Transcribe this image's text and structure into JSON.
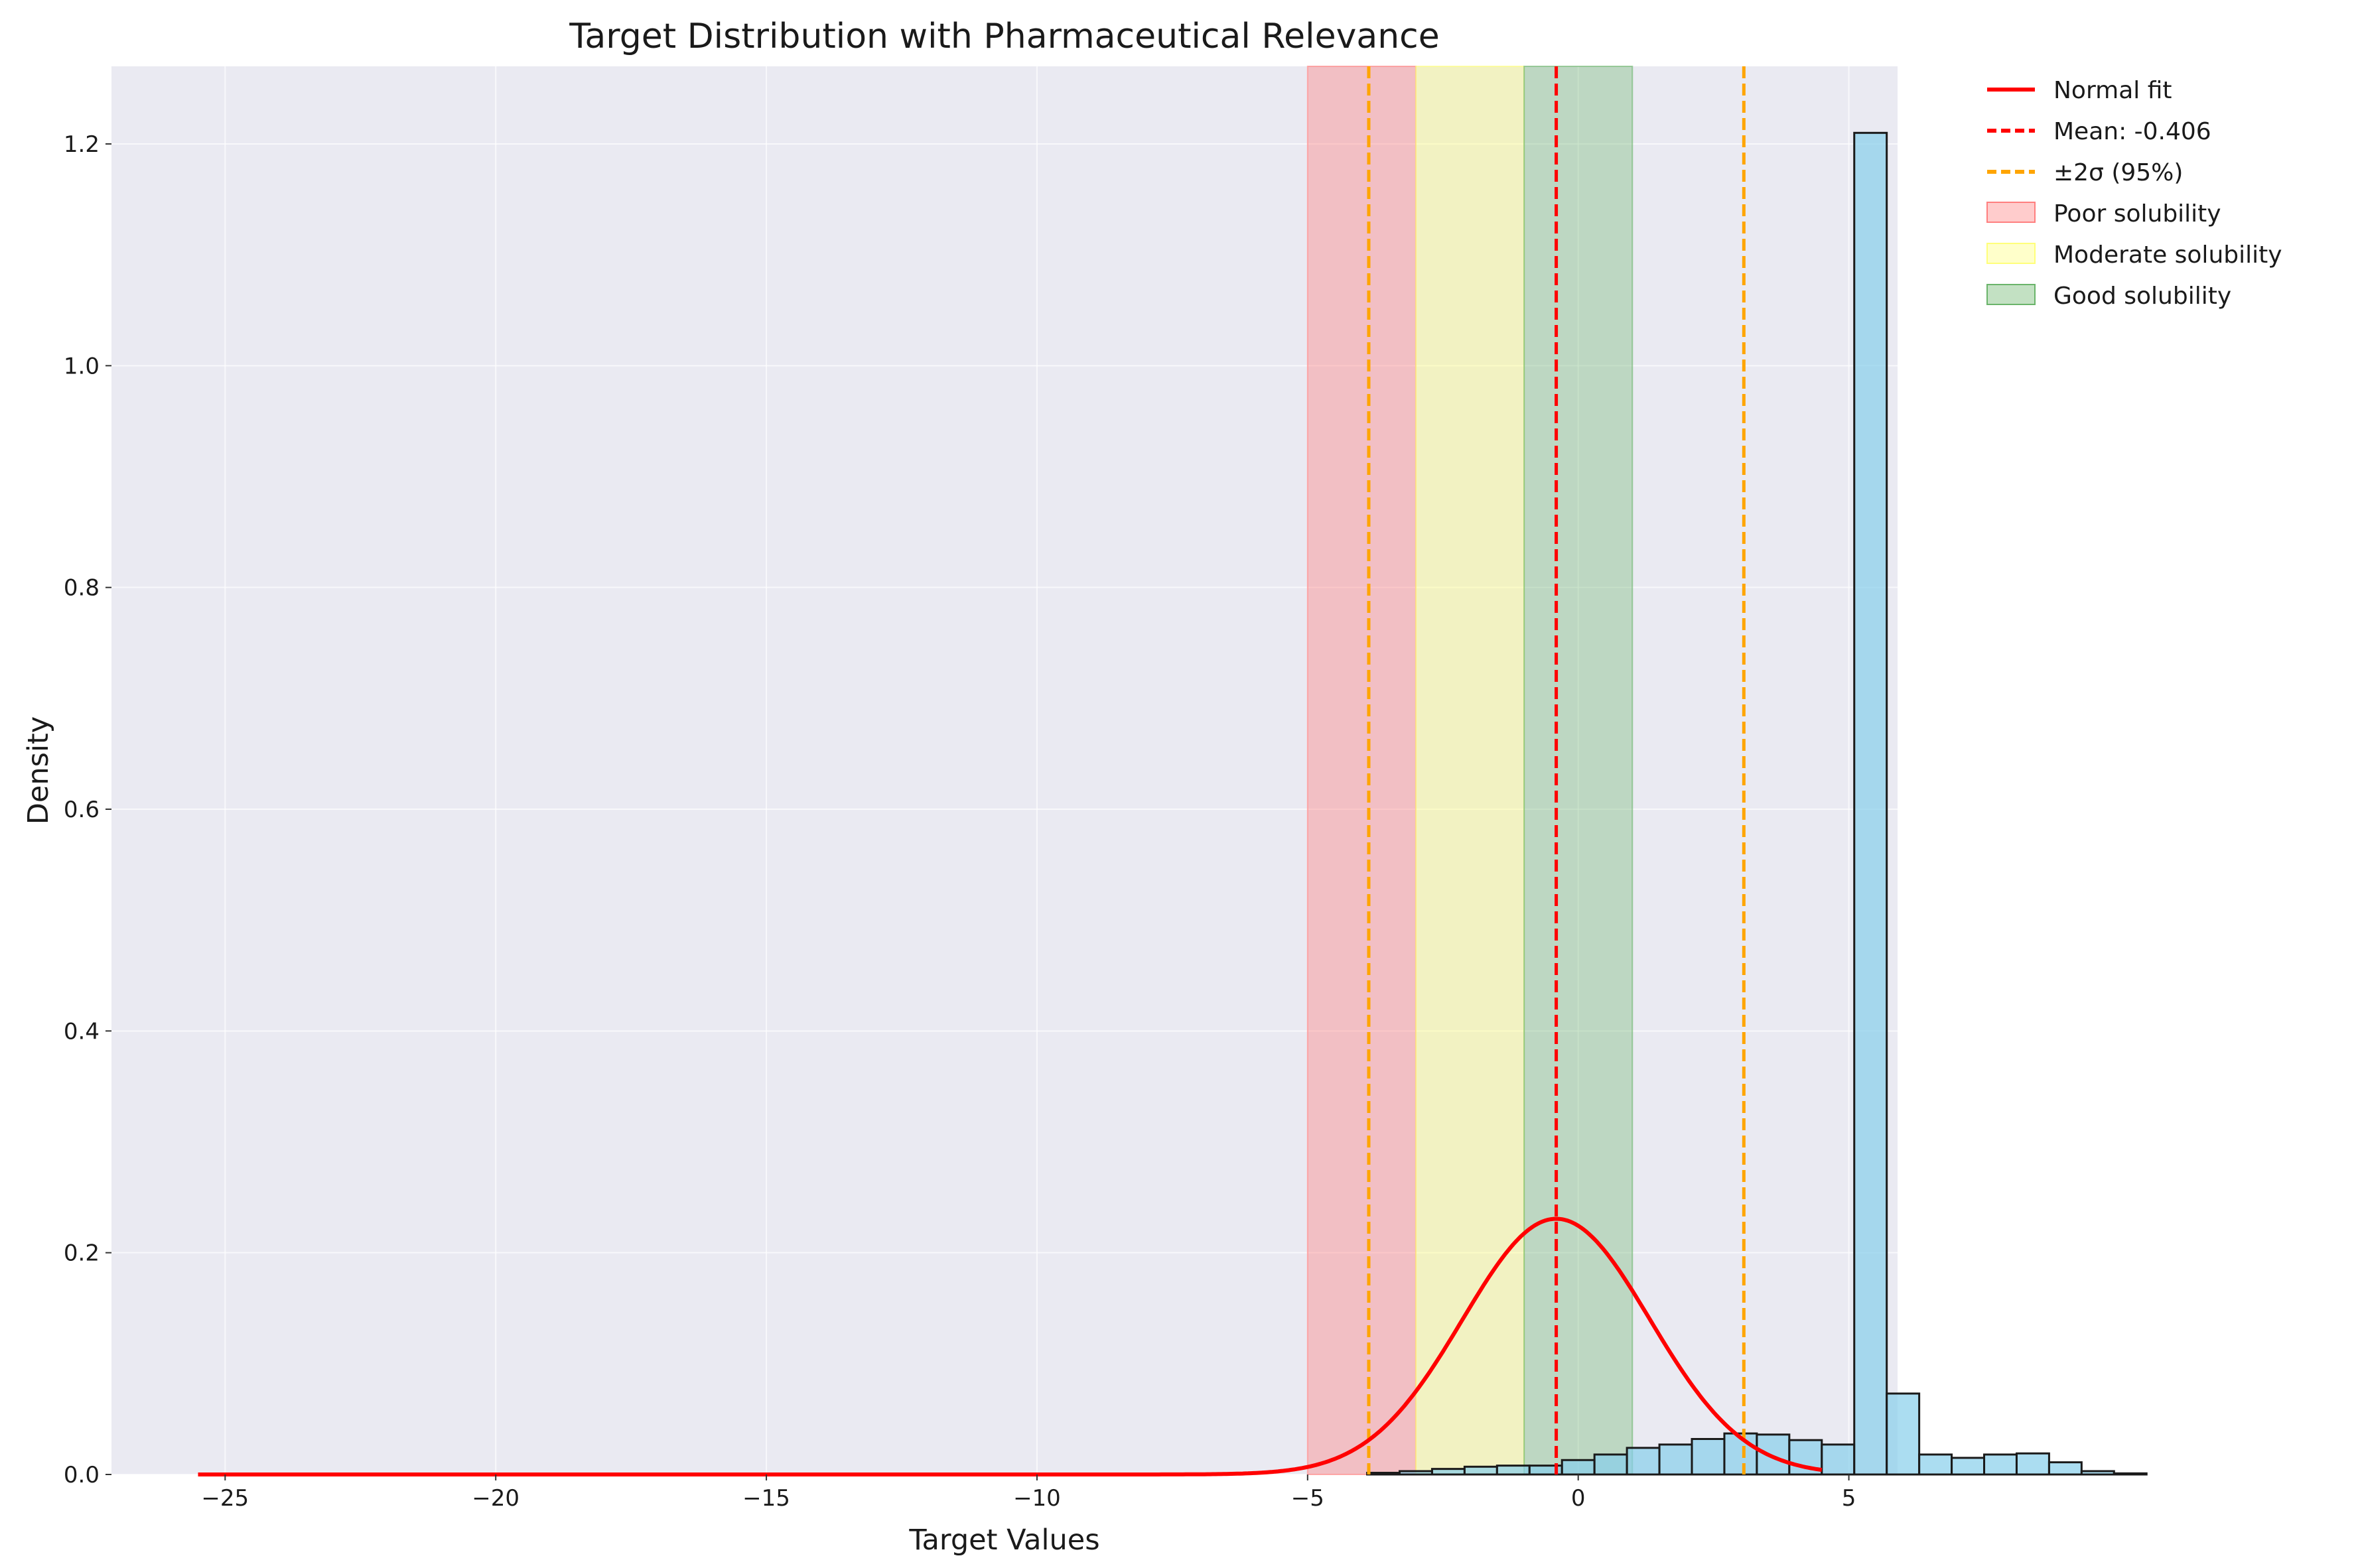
{
  "chart_data": {
    "type": "bar",
    "title": "Target Distribution with Pharmaceutical Relevance",
    "xlabel": "Target Values",
    "ylabel": "Density",
    "xlim": [
      -27.1,
      5.9
    ],
    "ylim": [
      0,
      1.27
    ],
    "grid": true,
    "x_ticks": [
      {
        "value": -25,
        "label": "−25"
      },
      {
        "value": -20,
        "label": "−20"
      },
      {
        "value": -15,
        "label": "−15"
      },
      {
        "value": -10,
        "label": "−10"
      },
      {
        "value": -5,
        "label": "−5"
      },
      {
        "value": 0,
        "label": "0"
      },
      {
        "value": 5,
        "label": "5"
      }
    ],
    "y_ticks": [
      {
        "value": 0.0,
        "label": "0.0"
      },
      {
        "value": 0.2,
        "label": "0.2"
      },
      {
        "value": 0.4,
        "label": "0.4"
      },
      {
        "value": 0.6,
        "label": "0.6"
      },
      {
        "value": 0.8,
        "label": "0.8"
      },
      {
        "value": 1.0,
        "label": "1.0"
      },
      {
        "value": 1.2,
        "label": "1.2"
      }
    ],
    "histogram": {
      "name": "Target histogram",
      "bin_start": -25.5,
      "bin_width": 0.6,
      "densities": [
        0,
        0,
        0,
        0,
        0,
        0,
        0,
        0,
        0,
        0,
        0,
        0,
        0,
        0,
        0,
        0,
        0,
        0,
        0,
        0,
        0,
        0,
        0,
        0,
        0,
        0,
        0,
        0,
        0,
        0,
        0,
        0,
        0,
        0,
        0,
        0,
        0.0015,
        0.003,
        0.005,
        0.007,
        0.008,
        0.008,
        0.013,
        0.018,
        0.024,
        0.027,
        0.032,
        0.037,
        0.036,
        0.031,
        0.027,
        1.21,
        0.073,
        0.018,
        0.015,
        0.018,
        0.019,
        0.011,
        0.003,
        0.001
      ],
      "fill_color": "#87ceeb",
      "edge_color": "#1a1a1a"
    },
    "series": [
      {
        "name": "Normal fit",
        "kind": "line",
        "color": "#ff0000",
        "mean": -0.406,
        "sigma": 1.73,
        "x_range": [
          -25.5,
          4.5
        ]
      }
    ],
    "vlines": [
      {
        "name": "Mean: -0.406",
        "x": -0.406,
        "color": "#ff0000",
        "style": "dashed"
      },
      {
        "name": "±2σ (95%)",
        "x": -3.87,
        "color": "#ffa500",
        "style": "dashed"
      },
      {
        "name": "±2σ (95%)",
        "x": 3.06,
        "color": "#ffa500",
        "style": "dashed"
      }
    ],
    "bands": [
      {
        "name": "Poor solubility",
        "x0": -5,
        "x1": -3,
        "color": "#ff7f7f",
        "alpha": 0.4
      },
      {
        "name": "Moderate solubility",
        "x0": -3,
        "x1": -1,
        "color": "#ffff7a",
        "alpha": 0.4
      },
      {
        "name": "Good solubility",
        "x0": -1,
        "x1": 1,
        "color": "#6ab46a",
        "alpha": 0.35
      }
    ],
    "legend": {
      "placement": "outside-top-right",
      "entries": [
        {
          "label": "Normal fit",
          "kind": "line",
          "color": "#ff0000"
        },
        {
          "label": "Mean: -0.406",
          "kind": "dashed",
          "color": "#ff0000"
        },
        {
          "label": "±2σ (95%)",
          "kind": "dashed",
          "color": "#ffa500"
        },
        {
          "label": "Poor solubility",
          "kind": "patch",
          "color": "#ff7f7f"
        },
        {
          "label": "Moderate solubility",
          "kind": "patch",
          "color": "#ffff7a"
        },
        {
          "label": "Good solubility",
          "kind": "patch",
          "color": "#6ab46a"
        }
      ]
    },
    "background_color": "#eaeaf2"
  }
}
